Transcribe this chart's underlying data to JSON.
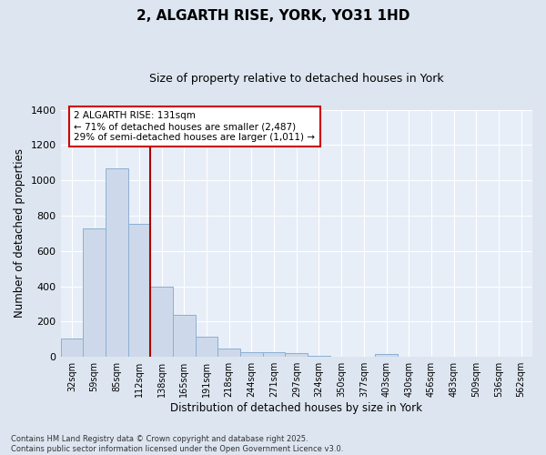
{
  "title": "2, ALGARTH RISE, YORK, YO31 1HD",
  "subtitle": "Size of property relative to detached houses in York",
  "xlabel": "Distribution of detached houses by size in York",
  "ylabel": "Number of detached properties",
  "bar_categories": [
    "32sqm",
    "59sqm",
    "85sqm",
    "112sqm",
    "138sqm",
    "165sqm",
    "191sqm",
    "218sqm",
    "244sqm",
    "271sqm",
    "297sqm",
    "324sqm",
    "350sqm",
    "377sqm",
    "403sqm",
    "430sqm",
    "456sqm",
    "483sqm",
    "509sqm",
    "536sqm",
    "562sqm"
  ],
  "bar_values": [
    105,
    730,
    1070,
    755,
    400,
    240,
    115,
    50,
    25,
    25,
    20,
    5,
    0,
    0,
    15,
    0,
    0,
    0,
    0,
    0,
    0
  ],
  "bar_color": "#cdd9ea",
  "bar_edge_color": "#8bafd4",
  "vline_x_index": 3.5,
  "annotation_line1": "2 ALGARTH RISE: 131sqm",
  "annotation_line2": "← 71% of detached houses are smaller (2,487)",
  "annotation_line3": "29% of semi-detached houses are larger (1,011) →",
  "vline_color": "#aa0000",
  "annotation_box_color": "#ffffff",
  "annotation_box_edge_color": "#cc0000",
  "ylim": [
    0,
    1400
  ],
  "yticks": [
    0,
    200,
    400,
    600,
    800,
    1000,
    1200,
    1400
  ],
  "background_color": "#dde6f0",
  "plot_bg_color": "#e8eef7",
  "footer_line1": "Contains HM Land Registry data © Crown copyright and database right 2025.",
  "footer_line2": "Contains public sector information licensed under the Open Government Licence v3.0."
}
